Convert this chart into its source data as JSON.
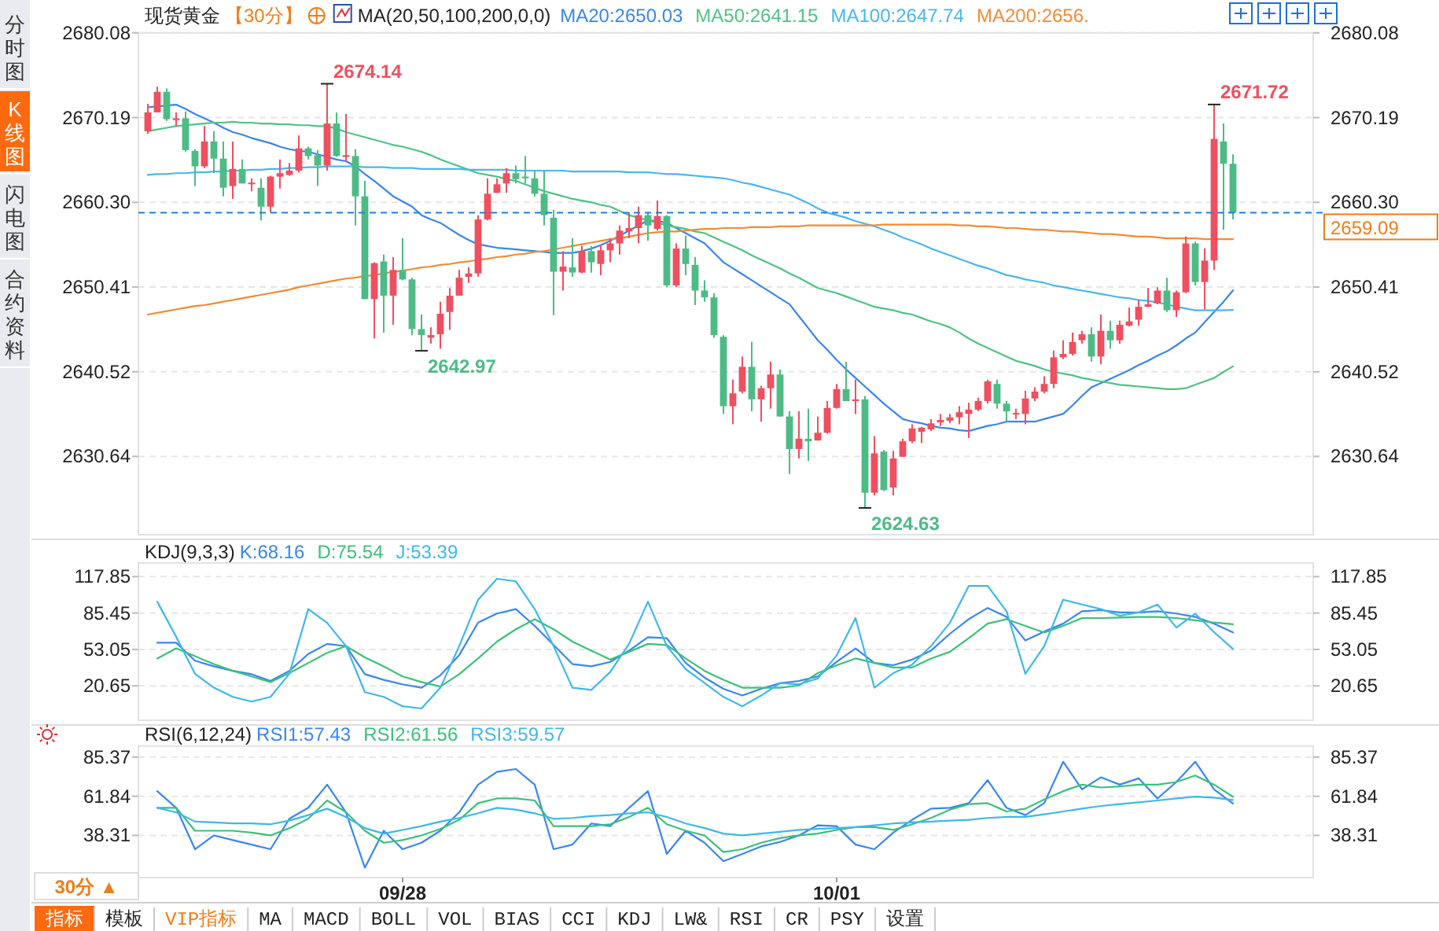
{
  "chart_data": [
    {
      "type": "candlestick",
      "title": "现货黄金",
      "subtitle": "【30分】",
      "legend_title": "MA(20,50,100,200,0,0)",
      "categories": [
        null,
        null,
        null,
        null,
        null,
        null,
        null,
        null,
        null,
        null,
        null,
        null,
        null,
        null,
        null,
        null,
        null,
        null,
        null,
        null,
        null,
        null,
        null,
        null,
        null,
        null,
        null,
        null,
        null,
        null,
        null,
        null,
        null,
        null,
        null,
        null,
        null,
        null,
        null,
        null,
        null,
        null,
        null,
        null,
        null,
        null,
        null,
        null,
        null,
        null,
        null,
        null,
        null,
        null,
        null,
        null,
        null,
        null,
        null,
        null,
        null,
        null,
        null,
        null,
        null,
        null,
        null,
        null,
        null,
        null,
        null,
        null,
        null,
        null,
        null,
        null,
        null,
        null,
        null,
        null,
        null,
        null,
        null,
        null,
        null,
        null,
        null,
        null,
        null,
        null,
        null,
        null,
        null,
        null,
        null,
        null,
        null,
        null,
        null,
        null,
        null,
        null,
        null,
        null,
        null,
        null,
        null,
        null,
        null,
        null,
        null,
        null,
        null,
        null,
        null,
        null
      ],
      "ohlc": [
        [
          2668.6,
          2671.8,
          2668.3,
          2670.8
        ],
        [
          2670.8,
          2673.8,
          2670.8,
          2673.2
        ],
        [
          2673.2,
          2673.6,
          2669.8,
          2670.0
        ],
        [
          2669.9,
          2670.8,
          2669.2,
          2670.1
        ],
        [
          2670.1,
          2670.9,
          2666.2,
          2666.4
        ],
        [
          2666.3,
          2666.5,
          2662.2,
          2664.5
        ],
        [
          2664.5,
          2669.2,
          2664.3,
          2667.4
        ],
        [
          2667.4,
          2668.6,
          2663.7,
          2665.4
        ],
        [
          2665.4,
          2667.4,
          2661.0,
          2662.0
        ],
        [
          2662.2,
          2667.4,
          2660.7,
          2664.2
        ],
        [
          2664.2,
          2665.3,
          2662.5,
          2662.5
        ],
        [
          2662.5,
          2663.1,
          2661.6,
          2662.6
        ],
        [
          2662.0,
          2663.1,
          2658.2,
          2659.8
        ],
        [
          2659.8,
          2663.4,
          2659.1,
          2663.3
        ],
        [
          2663.3,
          2665.3,
          2661.9,
          2663.7
        ],
        [
          2663.5,
          2664.9,
          2663.4,
          2664.0
        ],
        [
          2664.0,
          2668.1,
          2663.8,
          2666.6
        ],
        [
          2666.6,
          2666.8,
          2665.3,
          2665.7
        ],
        [
          2665.8,
          2666.4,
          2662.2,
          2664.6
        ],
        [
          2664.6,
          2674.14,
          2664.0,
          2669.5
        ],
        [
          2669.5,
          2670.8,
          2665.6,
          2665.7
        ],
        [
          2665.6,
          2670.6,
          2665.0,
          2665.8
        ],
        [
          2665.7,
          2666.5,
          2657.6,
          2661.0
        ],
        [
          2661.0,
          2662.8,
          2649.0,
          2649.0
        ],
        [
          2649.0,
          2653.3,
          2644.4,
          2653.2
        ],
        [
          2653.4,
          2654.2,
          2645.1,
          2649.4
        ],
        [
          2649.4,
          2653.9,
          2646.0,
          2652.4
        ],
        [
          2652.4,
          2656.1,
          2651.2,
          2651.3
        ],
        [
          2651.3,
          2651.5,
          2644.8,
          2645.5
        ],
        [
          2645.5,
          2647.2,
          2642.97,
          2644.8
        ],
        [
          2644.5,
          2645.7,
          2643.8,
          2644.8
        ],
        [
          2644.9,
          2648.7,
          2643.2,
          2647.3
        ],
        [
          2647.5,
          2650.3,
          2645.4,
          2649.4
        ],
        [
          2649.4,
          2652.4,
          2649.4,
          2651.5
        ],
        [
          2651.6,
          2652.7,
          2650.9,
          2652.0
        ],
        [
          2652.0,
          2658.8,
          2651.6,
          2658.3
        ],
        [
          2658.3,
          2663.1,
          2658.2,
          2661.3
        ],
        [
          2661.4,
          2663.1,
          2661.4,
          2662.4
        ],
        [
          2662.5,
          2664.3,
          2661.4,
          2663.7
        ],
        [
          2663.7,
          2664.6,
          2662.5,
          2663.0
        ],
        [
          2663.3,
          2665.7,
          2662.5,
          2663.1
        ],
        [
          2663.1,
          2664.0,
          2661.0,
          2661.3
        ],
        [
          2661.3,
          2664.0,
          2657.6,
          2658.8
        ],
        [
          2658.5,
          2659.4,
          2647.1,
          2652.2
        ],
        [
          2652.2,
          2654.6,
          2650.0,
          2652.8
        ],
        [
          2652.7,
          2656.1,
          2651.6,
          2652.1
        ],
        [
          2652.1,
          2655.2,
          2652.0,
          2654.6
        ],
        [
          2654.6,
          2655.2,
          2652.1,
          2653.3
        ],
        [
          2653.1,
          2655.2,
          2651.8,
          2654.7
        ],
        [
          2654.7,
          2656.1,
          2653.3,
          2655.5
        ],
        [
          2655.5,
          2657.6,
          2654.2,
          2657.0
        ],
        [
          2656.9,
          2659.1,
          2656.1,
          2657.3
        ],
        [
          2657.3,
          2659.8,
          2655.5,
          2658.8
        ],
        [
          2658.8,
          2659.1,
          2655.8,
          2657.6
        ],
        [
          2657.2,
          2660.5,
          2657.0,
          2658.7
        ],
        [
          2658.7,
          2658.8,
          2650.4,
          2650.6
        ],
        [
          2650.6,
          2655.5,
          2650.4,
          2654.9
        ],
        [
          2654.9,
          2656.4,
          2651.8,
          2653.1
        ],
        [
          2653.0,
          2653.9,
          2648.3,
          2650.0
        ],
        [
          2650.0,
          2651.2,
          2648.7,
          2649.2
        ],
        [
          2649.2,
          2649.7,
          2644.5,
          2644.8
        ],
        [
          2644.6,
          2644.8,
          2635.6,
          2636.5
        ],
        [
          2636.5,
          2639.6,
          2634.4,
          2638.0
        ],
        [
          2638.2,
          2642.3,
          2638.0,
          2641.1
        ],
        [
          2641.1,
          2644.0,
          2635.9,
          2637.3
        ],
        [
          2637.3,
          2638.9,
          2634.7,
          2638.6
        ],
        [
          2638.6,
          2641.7,
          2636.2,
          2640.2
        ],
        [
          2640.2,
          2640.8,
          2635.3,
          2635.3
        ],
        [
          2635.3,
          2635.9,
          2628.6,
          2631.5
        ],
        [
          2631.5,
          2635.9,
          2630.4,
          2632.7
        ],
        [
          2632.7,
          2636.2,
          2630.1,
          2632.4
        ],
        [
          2632.5,
          2635.3,
          2632.5,
          2633.4
        ],
        [
          2633.4,
          2637.1,
          2633.3,
          2636.3
        ],
        [
          2636.3,
          2639.1,
          2636.2,
          2638.5
        ],
        [
          2638.5,
          2641.7,
          2637.1,
          2637.1
        ],
        [
          2637.1,
          2639.6,
          2635.6,
          2637.3
        ],
        [
          2637.3,
          2637.7,
          2624.63,
          2626.4
        ],
        [
          2626.4,
          2633.0,
          2626.1,
          2631.0
        ],
        [
          2631.2,
          2631.4,
          2626.6,
          2626.7
        ],
        [
          2627.0,
          2631.3,
          2626.1,
          2630.4
        ],
        [
          2630.6,
          2632.7,
          2630.6,
          2632.4
        ],
        [
          2632.4,
          2634.4,
          2632.2,
          2633.9
        ],
        [
          2633.5,
          2634.1,
          2632.2,
          2634.0
        ],
        [
          2633.8,
          2635.0,
          2633.6,
          2634.5
        ],
        [
          2634.6,
          2635.6,
          2634.2,
          2634.9
        ],
        [
          2634.8,
          2635.6,
          2634.5,
          2635.2
        ],
        [
          2635.2,
          2636.5,
          2634.4,
          2635.8
        ],
        [
          2635.6,
          2636.9,
          2632.8,
          2636.1
        ],
        [
          2636.1,
          2637.5,
          2635.9,
          2637.1
        ],
        [
          2637.1,
          2639.6,
          2636.8,
          2639.4
        ],
        [
          2639.1,
          2639.6,
          2636.2,
          2636.8
        ],
        [
          2636.8,
          2637.1,
          2634.7,
          2635.9
        ],
        [
          2635.6,
          2636.2,
          2635.0,
          2635.7
        ],
        [
          2635.6,
          2638.3,
          2634.4,
          2637.4
        ],
        [
          2637.4,
          2638.7,
          2637.1,
          2638.2
        ],
        [
          2638.2,
          2640.0,
          2638.0,
          2639.1
        ],
        [
          2639.1,
          2643.0,
          2638.6,
          2642.2
        ],
        [
          2642.2,
          2644.2,
          2642.0,
          2642.6
        ],
        [
          2642.6,
          2645.1,
          2642.4,
          2644.0
        ],
        [
          2644.2,
          2645.3,
          2643.8,
          2644.9
        ],
        [
          2644.9,
          2645.7,
          2641.7,
          2642.3
        ],
        [
          2642.3,
          2647.2,
          2641.4,
          2645.3
        ],
        [
          2645.3,
          2646.5,
          2643.2,
          2644.2
        ],
        [
          2644.2,
          2646.5,
          2643.8,
          2646.0
        ],
        [
          2645.9,
          2648.0,
          2645.8,
          2646.4
        ],
        [
          2646.6,
          2648.9,
          2645.9,
          2648.1
        ],
        [
          2648.1,
          2650.3,
          2648.1,
          2648.4
        ],
        [
          2648.5,
          2650.4,
          2648.4,
          2650.0
        ],
        [
          2650.0,
          2651.5,
          2647.5,
          2647.7
        ],
        [
          2647.7,
          2650.0,
          2646.9,
          2649.8
        ],
        [
          2649.8,
          2656.3,
          2649.7,
          2655.5
        ],
        [
          2655.5,
          2655.7,
          2650.6,
          2651.0
        ],
        [
          2651.0,
          2654.9,
          2647.8,
          2653.5
        ],
        [
          2653.5,
          2671.72,
          2652.4,
          2667.7
        ],
        [
          2667.4,
          2669.5,
          2657.1,
          2664.8
        ],
        [
          2664.8,
          2665.9,
          2658.3,
          2659.09
        ]
      ],
      "series": [
        {
          "type": "line",
          "name": "MA20:2650.03",
          "color": "#3a86e8",
          "values": [
            2671.4,
            2671.5,
            2671.6,
            2671.7,
            2671.2,
            2670.6,
            2670.1,
            2669.6,
            2669.0,
            2668.5,
            2668.2,
            2667.8,
            2667.5,
            2667.2,
            2666.8,
            2666.5,
            2666.3,
            2666.2,
            2665.9,
            2665.6,
            2665.3,
            2665.1,
            2664.5,
            2663.6,
            2662.8,
            2661.9,
            2661.0,
            2660.4,
            2659.8,
            2658.8,
            2658.3,
            2657.9,
            2657.2,
            2656.5,
            2655.9,
            2655.4,
            2655.2,
            2655.0,
            2654.9,
            2654.8,
            2654.7,
            2654.6,
            2654.5,
            2654.4,
            2654.4,
            2654.4,
            2654.6,
            2654.9,
            2655.3,
            2655.8,
            2656.4,
            2657.0,
            2657.6,
            2658.2,
            2658.1,
            2657.9,
            2657.3,
            2656.7,
            2656.1,
            2655.5,
            2654.4,
            2653.3,
            2652.6,
            2651.9,
            2651.2,
            2650.5,
            2649.8,
            2649.1,
            2648.4,
            2647.0,
            2645.6,
            2644.2,
            2643.1,
            2641.9,
            2640.8,
            2639.8,
            2638.8,
            2637.8,
            2636.8,
            2635.9,
            2635.0,
            2634.7,
            2634.5,
            2634.2,
            2634.0,
            2633.9,
            2633.7,
            2633.6,
            2633.9,
            2634.2,
            2634.4,
            2634.7,
            2634.7,
            2634.7,
            2634.7,
            2635.0,
            2635.3,
            2635.6,
            2636.6,
            2637.7,
            2638.7,
            2639.2,
            2639.7,
            2640.2,
            2640.7,
            2641.3,
            2641.8,
            2642.4,
            2642.9,
            2643.6,
            2644.4,
            2645.1,
            2646.3,
            2647.5,
            2648.7,
            2650.03
          ]
        },
        {
          "type": "line",
          "name": "MA50:2641.15",
          "color": "#4fc284",
          "values": [
            2668.6,
            2668.8,
            2669.0,
            2669.2,
            2669.3,
            2669.4,
            2669.5,
            2669.6,
            2669.6,
            2669.7,
            2669.6,
            2669.6,
            2669.5,
            2669.5,
            2669.4,
            2669.4,
            2669.3,
            2669.3,
            2669.2,
            2669.2,
            2668.9,
            2668.5,
            2668.2,
            2667.9,
            2667.6,
            2667.3,
            2667.0,
            2666.8,
            2666.5,
            2666.2,
            2665.8,
            2665.3,
            2664.9,
            2664.5,
            2664.1,
            2663.7,
            2663.5,
            2663.3,
            2663.0,
            2662.8,
            2662.4,
            2662.0,
            2661.6,
            2661.3,
            2661.0,
            2660.7,
            2660.5,
            2660.3,
            2660.0,
            2659.8,
            2659.3,
            2658.8,
            2658.5,
            2658.2,
            2657.9,
            2657.6,
            2657.4,
            2657.2,
            2656.9,
            2656.7,
            2656.2,
            2655.7,
            2655.2,
            2654.7,
            2654.1,
            2653.6,
            2653.1,
            2652.6,
            2652.0,
            2651.5,
            2650.9,
            2650.3,
            2650.0,
            2649.7,
            2649.3,
            2648.9,
            2648.5,
            2648.1,
            2647.9,
            2647.7,
            2647.4,
            2647.2,
            2646.8,
            2646.4,
            2646.1,
            2645.7,
            2645.1,
            2644.4,
            2643.8,
            2643.3,
            2642.8,
            2642.3,
            2641.8,
            2641.5,
            2641.2,
            2640.8,
            2640.5,
            2640.3,
            2640.1,
            2639.8,
            2639.6,
            2639.4,
            2639.2,
            2639.0,
            2638.9,
            2638.8,
            2638.7,
            2638.6,
            2638.5,
            2638.5,
            2638.6,
            2639.0,
            2639.4,
            2639.8,
            2640.5,
            2641.15
          ]
        },
        {
          "type": "line",
          "name": "MA100:2647.74",
          "color": "#4ab6ec",
          "values": [
            2663.5,
            2663.6,
            2663.6,
            2663.7,
            2663.7,
            2663.8,
            2663.8,
            2663.9,
            2663.9,
            2664.0,
            2664.0,
            2664.1,
            2664.1,
            2664.2,
            2664.2,
            2664.3,
            2664.3,
            2664.4,
            2664.4,
            2664.5,
            2664.5,
            2664.5,
            2664.5,
            2664.4,
            2664.4,
            2664.4,
            2664.3,
            2664.3,
            2664.3,
            2664.2,
            2664.2,
            2664.2,
            2664.2,
            2664.2,
            2664.1,
            2664.1,
            2664.1,
            2664.1,
            2664.1,
            2664.0,
            2664.0,
            2664.0,
            2664.0,
            2664.0,
            2664.0,
            2663.9,
            2663.9,
            2663.9,
            2663.9,
            2663.9,
            2663.9,
            2663.8,
            2663.8,
            2663.8,
            2663.7,
            2663.6,
            2663.6,
            2663.5,
            2663.4,
            2663.3,
            2663.2,
            2663.1,
            2662.9,
            2662.6,
            2662.4,
            2662.1,
            2661.8,
            2661.5,
            2661.2,
            2660.7,
            2660.2,
            2659.6,
            2659.1,
            2658.8,
            2658.5,
            2658.1,
            2657.8,
            2657.5,
            2657.1,
            2656.7,
            2656.2,
            2655.8,
            2655.4,
            2654.9,
            2654.5,
            2654.1,
            2653.7,
            2653.3,
            2652.9,
            2652.6,
            2652.2,
            2651.8,
            2651.6,
            2651.3,
            2651.1,
            2650.9,
            2650.6,
            2650.4,
            2650.2,
            2650.0,
            2649.8,
            2649.6,
            2649.4,
            2649.2,
            2649.1,
            2648.9,
            2648.8,
            2648.6,
            2648.4,
            2648.1,
            2647.9,
            2647.7,
            2647.7,
            2647.7,
            2647.7,
            2647.74
          ]
        },
        {
          "type": "line",
          "name": "MA200:2656.",
          "color": "#f28b35",
          "values": [
            2647.2,
            2647.4,
            2647.6,
            2647.8,
            2648.0,
            2648.2,
            2648.3,
            2648.5,
            2648.7,
            2648.9,
            2649.1,
            2649.3,
            2649.5,
            2649.7,
            2649.9,
            2650.1,
            2650.4,
            2650.6,
            2650.8,
            2651.0,
            2651.2,
            2651.4,
            2651.5,
            2651.7,
            2651.8,
            2652.0,
            2652.2,
            2652.3,
            2652.5,
            2652.7,
            2652.8,
            2653.0,
            2653.1,
            2653.3,
            2653.4,
            2653.6,
            2653.7,
            2653.9,
            2654.0,
            2654.2,
            2654.3,
            2654.5,
            2654.6,
            2654.8,
            2655.0,
            2655.2,
            2655.4,
            2655.6,
            2655.8,
            2656.0,
            2656.1,
            2656.3,
            2656.5,
            2656.7,
            2656.8,
            2656.9,
            2656.9,
            2657.0,
            2657.1,
            2657.2,
            2657.2,
            2657.3,
            2657.3,
            2657.3,
            2657.4,
            2657.4,
            2657.4,
            2657.5,
            2657.5,
            2657.5,
            2657.6,
            2657.6,
            2657.6,
            2657.6,
            2657.6,
            2657.6,
            2657.6,
            2657.6,
            2657.7,
            2657.7,
            2657.7,
            2657.7,
            2657.7,
            2657.7,
            2657.7,
            2657.7,
            2657.6,
            2657.6,
            2657.5,
            2657.5,
            2657.4,
            2657.3,
            2657.3,
            2657.2,
            2657.1,
            2657.1,
            2657.0,
            2656.9,
            2656.9,
            2656.8,
            2656.7,
            2656.6,
            2656.6,
            2656.5,
            2656.4,
            2656.3,
            2656.3,
            2656.2,
            2656.1,
            2656.1,
            2656.1,
            2656.1,
            2656.0,
            2656.0,
            2656.0,
            2656.0
          ]
        }
      ],
      "ylim": [
        2621.5,
        2680.08
      ],
      "yticks": [
        2630.64,
        2640.52,
        2650.41,
        {
          "value": 2660.3,
          "label": "2660.30"
        },
        2670.19,
        2680.08
      ],
      "y2lim": [
        2621.5,
        2680.08
      ],
      "y2ticks": [
        2630.64,
        2640.52,
        2650.41,
        {
          "value": 2660.3,
          "label": "2660.30"
        },
        2670.19,
        2680.08
      ],
      "tick_labels": "y",
      "grid": "y",
      "legend": false,
      "ref_lines": [
        {
          "axis": "y2",
          "value": 2659.09,
          "label": "2659.09",
          "color": "#1e7fe0",
          "line_style": "dashed"
        }
      ],
      "annotations": [
        "2674.14",
        "2642.97",
        "2624.63",
        "2671.72"
      ]
    },
    {
      "type": "line",
      "title": "KDJ(9,3,3)",
      "categories": [
        null,
        null,
        null,
        null,
        null,
        null,
        null,
        null,
        null,
        null,
        null,
        null,
        null,
        null,
        null,
        null,
        null,
        null,
        null,
        null,
        null,
        null,
        null,
        null,
        null,
        null,
        null,
        null,
        null,
        null,
        null,
        null,
        null,
        null,
        null,
        null,
        null,
        null,
        null,
        null,
        null,
        null,
        null,
        null,
        null,
        null,
        null,
        null,
        null,
        null,
        null,
        null,
        null,
        null,
        null,
        null,
        null,
        null
      ],
      "series": [
        {
          "name": "K:68.16",
          "color": "#3a86f0",
          "values": [
            59,
            59,
            43,
            38,
            34,
            31,
            25,
            34,
            49,
            58,
            56,
            31,
            26,
            22,
            19,
            30,
            48,
            77,
            85,
            89,
            74,
            57,
            40,
            38,
            42,
            52,
            64,
            63,
            41,
            28,
            18,
            12,
            18,
            23,
            25,
            29,
            42,
            54,
            41,
            39,
            44,
            52,
            67,
            80,
            90,
            82,
            61,
            69,
            76,
            87,
            88,
            86,
            86,
            87,
            85,
            82,
            76,
            68.16
          ]
        },
        {
          "name": "D:75.54",
          "color": "#3cc07a",
          "values": [
            45,
            54,
            47,
            40,
            34,
            29,
            24,
            32,
            41,
            50,
            56,
            46,
            38,
            29,
            24,
            20,
            31,
            45,
            60,
            71,
            80,
            71,
            60,
            52,
            44,
            51,
            58,
            57,
            45,
            34,
            26,
            19,
            19,
            19,
            21,
            32,
            39,
            45,
            41,
            37,
            37,
            45,
            51,
            63,
            76,
            80,
            74,
            68,
            74,
            81,
            81,
            81.5,
            82,
            82,
            81,
            79,
            77,
            75.54
          ]
        },
        {
          "name": "J:53.39",
          "color": "#3fb8e8",
          "values": [
            95.6,
            64.3,
            31.4,
            19,
            10.8,
            6.6,
            10.8,
            31.4,
            89,
            76.7,
            56.1,
            15,
            10.8,
            2.5,
            0.5,
            19,
            56.1,
            97.3,
            116,
            113.7,
            89,
            56.1,
            19,
            17,
            33,
            58,
            95.6,
            56.1,
            35.5,
            23.1,
            10.8,
            2.5,
            12,
            23.1,
            22,
            27.2,
            47.8,
            81,
            19,
            32,
            39.6,
            56.1,
            76.7,
            109.6,
            109.6,
            87,
            31.4,
            56.1,
            97.3,
            93.1,
            89,
            83,
            86,
            93.1,
            72.5,
            84.9,
            68.4,
            53.39
          ]
        }
      ],
      "ylim": [
        -10,
        130
      ],
      "yticks": [
        20.65,
        53.05,
        85.45,
        117.85
      ],
      "y2lim": [
        -10,
        130
      ],
      "y2ticks": [
        20.65,
        53.05,
        85.45,
        117.85
      ],
      "tick_labels": "y",
      "grid": "y",
      "legend": false
    },
    {
      "type": "line",
      "title": "RSI(6,12,24)",
      "categories": [
        null,
        null,
        null,
        null,
        null,
        null,
        null,
        null,
        null,
        null,
        null,
        null,
        null,
        "09/28",
        null,
        null,
        null,
        null,
        null,
        null,
        null,
        null,
        null,
        null,
        null,
        null,
        null,
        null,
        null,
        null,
        null,
        null,
        null,
        null,
        null,
        null,
        "10/01",
        null,
        null,
        null,
        null,
        null,
        null,
        null,
        null,
        null,
        null,
        null,
        null,
        null,
        null,
        null,
        null,
        null,
        null,
        null,
        null,
        null
      ],
      "series": [
        {
          "name": "RSI1:57.43",
          "color": "#3a86f0",
          "values": [
            64.9,
            54.9,
            30.0,
            38.3,
            35.5,
            32.8,
            30.0,
            48.3,
            54.9,
            68.8,
            52.2,
            18.9,
            41.1,
            30.0,
            33.9,
            41.1,
            52.2,
            68.8,
            76.5,
            78.2,
            68.8,
            30.0,
            32.8,
            45.5,
            43.9,
            54.9,
            64.9,
            27.2,
            41.1,
            33.9,
            22.8,
            27.2,
            31.7,
            34.4,
            38.3,
            44.4,
            43.9,
            32.8,
            30.0,
            40.0,
            47.7,
            54.4,
            54.9,
            57.7,
            71.5,
            54.9,
            50.5,
            57.7,
            82.6,
            66.0,
            73.2,
            68.8,
            72.6,
            60.5,
            70.4,
            82.6,
            66.0,
            57.43
          ]
        },
        {
          "name": "RSI2:61.56",
          "color": "#3cc07a",
          "values": [
            54.9,
            54.9,
            41.1,
            41.1,
            41.1,
            40.0,
            38.3,
            42.7,
            48.3,
            59.3,
            52.2,
            41.1,
            33.9,
            35.5,
            38.3,
            42.2,
            47.7,
            57.7,
            60.5,
            60.5,
            59.3,
            43.9,
            43.9,
            43.9,
            45.0,
            49.4,
            54.9,
            45.0,
            41.1,
            38.3,
            28.3,
            30.0,
            33.9,
            36.7,
            38.3,
            39.4,
            41.6,
            43.3,
            43.3,
            41.6,
            45.0,
            48.8,
            53.8,
            57.1,
            57.7,
            52.7,
            54.4,
            59.9,
            64.9,
            68.8,
            67.1,
            67.7,
            68.8,
            68.8,
            70.4,
            74.3,
            68.8,
            61.56
          ]
        },
        {
          "name": "RSI3:59.57",
          "color": "#3fb8e8",
          "values": [
            54.9,
            52.2,
            46.6,
            46.1,
            45.5,
            45.5,
            45.0,
            47.2,
            50.5,
            54.4,
            49.4,
            42.7,
            39.4,
            41.6,
            43.9,
            46.6,
            48.8,
            51.6,
            54.9,
            53.8,
            51.6,
            48.3,
            48.8,
            49.9,
            50.5,
            51.6,
            52.2,
            49.4,
            45.5,
            42.7,
            39.4,
            38.3,
            39.4,
            40.5,
            41.6,
            42.2,
            42.7,
            43.3,
            44.4,
            45.5,
            46.1,
            46.6,
            47.2,
            47.7,
            48.8,
            49.4,
            49.4,
            51.0,
            52.7,
            54.4,
            56.0,
            57.1,
            58.2,
            59.3,
            60.5,
            61.6,
            61.0,
            59.57
          ]
        }
      ],
      "ylim": [
        13,
        92
      ],
      "yticks": [
        38.31,
        61.84,
        85.37
      ],
      "y2lim": [
        13,
        92
      ],
      "y2ticks": [
        38.31,
        61.84,
        85.37
      ],
      "grid": "y",
      "legend": false
    },
    {
      "type": "other",
      "annotations": [
        "分时图",
        "K线图",
        "闪电图",
        "合约资料"
      ]
    },
    {
      "type": "other",
      "annotations": [
        "30分 ▲",
        "指标",
        "模板",
        "VIP指标",
        "MA",
        "MACD",
        "BOLL",
        "VOL",
        "BIAS",
        "CCI",
        "KDJ",
        "LW&",
        "RSI",
        "CR",
        "PSY",
        "设置"
      ]
    }
  ]
}
